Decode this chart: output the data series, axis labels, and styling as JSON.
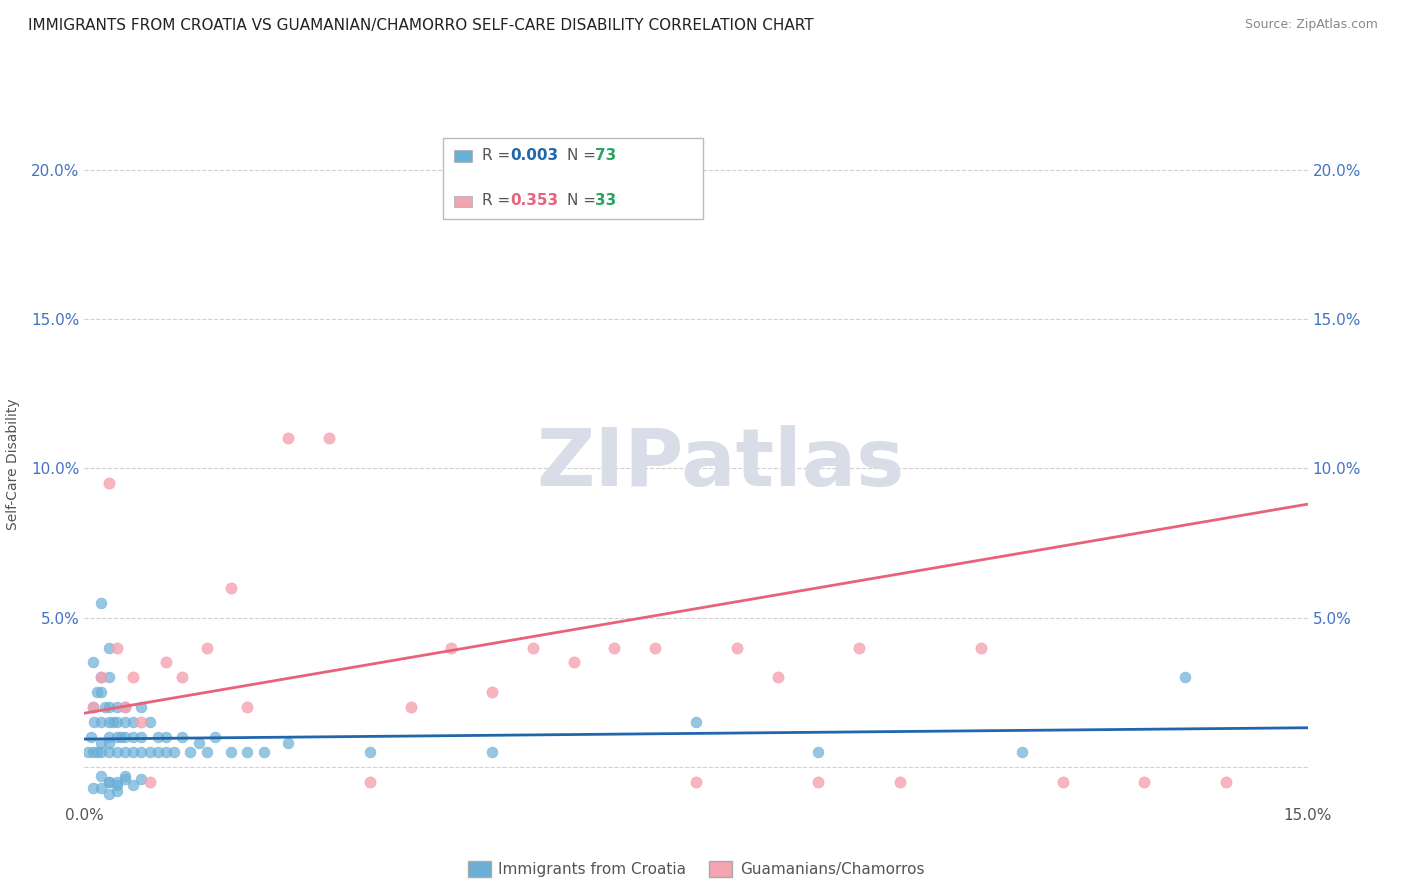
{
  "title": "IMMIGRANTS FROM CROATIA VS GUAMANIAN/CHAMORRO SELF-CARE DISABILITY CORRELATION CHART",
  "source": "Source: ZipAtlas.com",
  "ylabel": "Self-Care Disability",
  "xlim": [
    0.0,
    0.15
  ],
  "ylim": [
    -0.01,
    0.21
  ],
  "plot_ylim": [
    -0.01,
    0.21
  ],
  "ytick_values": [
    0.0,
    0.05,
    0.1,
    0.15,
    0.2
  ],
  "ytick_labels": [
    "",
    "5.0%",
    "10.0%",
    "15.0%",
    "20.0%"
  ],
  "series1_label": "Immigrants from Croatia",
  "series2_label": "Guamanians/Chamorros",
  "series1_color": "#6baed6",
  "series2_color": "#f4a3b0",
  "series1_line_color": "#2166ac",
  "series2_line_color": "#e8637a",
  "legend_R1_color": "#2166ac",
  "legend_R2_color": "#e8637a",
  "legend_N_color": "#2ca25f",
  "watermark_text": "ZIPatlas",
  "watermark_color": "#d8dde8",
  "grid_color": "#d0d0d0",
  "background_color": "#ffffff",
  "series1_R": "0.003",
  "series1_N": "73",
  "series2_R": "0.353",
  "series2_N": "33",
  "series1_x": [
    0.0005,
    0.0008,
    0.001,
    0.001,
    0.0012,
    0.0015,
    0.0015,
    0.002,
    0.002,
    0.002,
    0.002,
    0.0025,
    0.003,
    0.003,
    0.003,
    0.003,
    0.003,
    0.003,
    0.0035,
    0.004,
    0.004,
    0.004,
    0.004,
    0.0045,
    0.005,
    0.005,
    0.005,
    0.005,
    0.006,
    0.006,
    0.006,
    0.007,
    0.007,
    0.007,
    0.008,
    0.008,
    0.009,
    0.009,
    0.01,
    0.01,
    0.011,
    0.012,
    0.013,
    0.014,
    0.015,
    0.016,
    0.018,
    0.02,
    0.022,
    0.025,
    0.003,
    0.004,
    0.005,
    0.006,
    0.007,
    0.002,
    0.003,
    0.004,
    0.005,
    0.001,
    0.002,
    0.003,
    0.004,
    0.002,
    0.003,
    0.001,
    0.002,
    0.035,
    0.05,
    0.075,
    0.09,
    0.115,
    0.135
  ],
  "series1_y": [
    0.005,
    0.01,
    0.02,
    0.005,
    0.015,
    0.025,
    0.005,
    0.03,
    0.015,
    0.005,
    0.008,
    0.02,
    0.03,
    0.02,
    0.01,
    0.005,
    0.015,
    0.008,
    0.015,
    0.02,
    0.01,
    0.005,
    0.015,
    0.01,
    0.02,
    0.01,
    0.005,
    0.015,
    0.015,
    0.005,
    0.01,
    0.02,
    0.005,
    0.01,
    0.015,
    0.005,
    0.01,
    0.005,
    0.01,
    0.005,
    0.005,
    0.01,
    0.005,
    0.008,
    0.005,
    0.01,
    0.005,
    0.005,
    0.005,
    0.008,
    -0.005,
    -0.008,
    -0.003,
    -0.006,
    -0.004,
    -0.007,
    -0.005,
    -0.006,
    -0.004,
    -0.007,
    -0.003,
    -0.009,
    -0.005,
    0.055,
    0.04,
    0.035,
    0.025,
    0.005,
    0.005,
    0.015,
    0.005,
    0.005,
    0.03
  ],
  "series2_x": [
    0.001,
    0.002,
    0.003,
    0.004,
    0.005,
    0.006,
    0.007,
    0.008,
    0.01,
    0.012,
    0.015,
    0.018,
    0.02,
    0.025,
    0.03,
    0.035,
    0.04,
    0.045,
    0.05,
    0.055,
    0.06,
    0.065,
    0.07,
    0.075,
    0.08,
    0.085,
    0.09,
    0.095,
    0.1,
    0.11,
    0.12,
    0.13,
    0.14
  ],
  "series2_y": [
    0.02,
    0.03,
    0.095,
    0.04,
    0.02,
    0.03,
    0.015,
    -0.005,
    0.035,
    0.03,
    0.04,
    0.06,
    0.02,
    0.11,
    0.11,
    -0.005,
    0.02,
    0.04,
    0.025,
    0.04,
    0.035,
    0.04,
    0.04,
    -0.005,
    0.04,
    0.03,
    -0.005,
    0.04,
    -0.005,
    0.04,
    -0.005,
    -0.005,
    -0.005
  ]
}
